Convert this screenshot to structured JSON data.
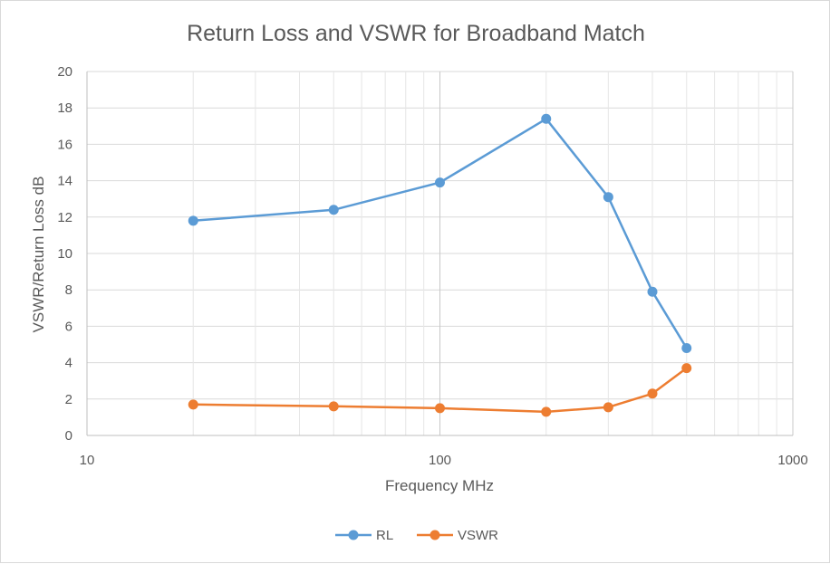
{
  "chart_data": {
    "type": "line",
    "title": "Return Loss and VSWR for Broadband Match",
    "xlabel": "Frequency MHz",
    "ylabel": "VSWR/Return Loss dB",
    "x_scale": "log",
    "xlim": [
      10,
      1000
    ],
    "ylim": [
      0,
      20
    ],
    "x_ticks": [
      "10",
      "100",
      "1000"
    ],
    "y_ticks": [
      "0",
      "2",
      "4",
      "6",
      "8",
      "10",
      "12",
      "14",
      "16",
      "18",
      "20"
    ],
    "grid": "on",
    "legend_position": "bottom",
    "series": [
      {
        "name": "RL",
        "color": "#5b9bd5",
        "x": [
          20,
          50,
          100,
          200,
          300,
          400,
          500
        ],
        "y": [
          11.8,
          12.4,
          13.9,
          17.4,
          13.1,
          7.9,
          4.8
        ]
      },
      {
        "name": "VSWR",
        "color": "#ed7d31",
        "x": [
          20,
          50,
          100,
          200,
          300,
          400,
          500
        ],
        "y": [
          1.7,
          1.6,
          1.5,
          1.3,
          1.55,
          2.3,
          3.7
        ]
      }
    ]
  }
}
